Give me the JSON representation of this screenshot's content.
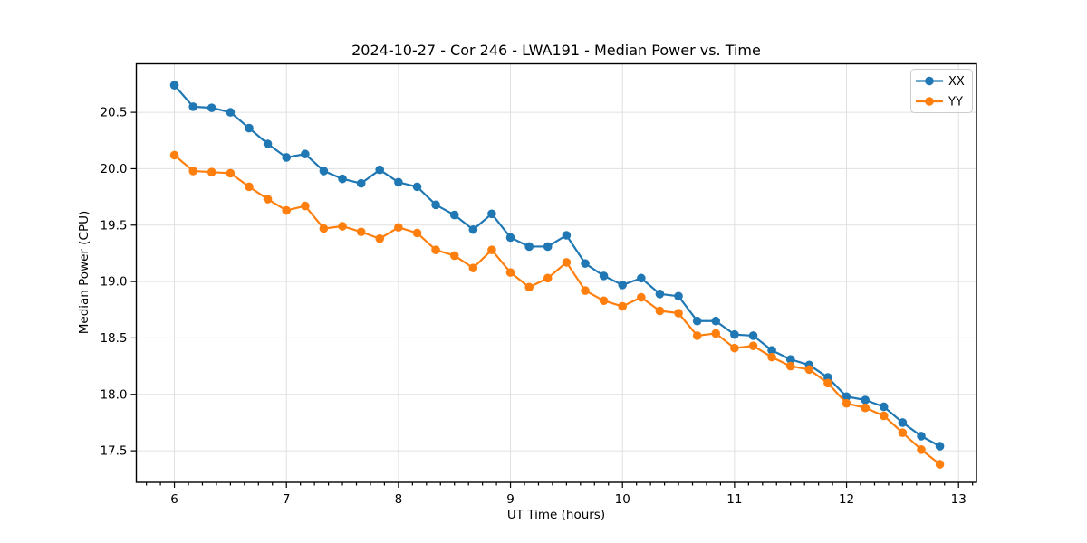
{
  "chart_data": {
    "type": "line",
    "title": "2024-10-27 - Cor 246 - LWA191 - Median Power vs. Time",
    "xlabel": "UT Time (hours)",
    "ylabel": "Median Power (CPU)",
    "xlim": [
      5.66,
      13.16
    ],
    "ylim": [
      17.22,
      20.93
    ],
    "x_ticks": [
      6,
      7,
      8,
      9,
      10,
      11,
      12,
      13
    ],
    "x_minor_step": 0.125,
    "y_ticks": [
      17.5,
      18.0,
      18.5,
      19.0,
      19.5,
      20.0,
      20.5
    ],
    "grid": true,
    "legend_position": "upper right",
    "background": "#ffffff",
    "grid_color": "#e0e0e0",
    "x": [
      6.0,
      6.167,
      6.333,
      6.5,
      6.667,
      6.833,
      7.0,
      7.167,
      7.333,
      7.5,
      7.667,
      7.833,
      8.0,
      8.167,
      8.333,
      8.5,
      8.667,
      8.833,
      9.0,
      9.167,
      9.333,
      9.5,
      9.667,
      9.833,
      10.0,
      10.167,
      10.333,
      10.5,
      10.667,
      10.833,
      11.0,
      11.167,
      11.333,
      11.5,
      11.667,
      11.833,
      12.0,
      12.167,
      12.333,
      12.5,
      12.667,
      12.833
    ],
    "series": [
      {
        "name": "XX",
        "color": "#1f77b4",
        "marker": "circle",
        "values": [
          20.74,
          20.55,
          20.54,
          20.5,
          20.36,
          20.22,
          20.1,
          20.13,
          19.98,
          19.91,
          19.87,
          19.99,
          19.88,
          19.84,
          19.68,
          19.59,
          19.46,
          19.6,
          19.39,
          19.31,
          19.31,
          19.41,
          19.16,
          19.05,
          18.97,
          19.03,
          18.89,
          18.87,
          18.65,
          18.65,
          18.53,
          18.52,
          18.39,
          18.31,
          18.26,
          18.15,
          17.98,
          17.95,
          17.89,
          17.75,
          17.63,
          17.54
        ]
      },
      {
        "name": "YY",
        "color": "#ff7f0e",
        "marker": "circle",
        "values": [
          20.12,
          19.98,
          19.97,
          19.96,
          19.84,
          19.73,
          19.63,
          19.67,
          19.47,
          19.49,
          19.44,
          19.38,
          19.48,
          19.43,
          19.28,
          19.23,
          19.12,
          19.28,
          19.08,
          18.95,
          19.03,
          19.17,
          18.92,
          18.83,
          18.78,
          18.86,
          18.74,
          18.72,
          18.52,
          18.54,
          18.41,
          18.43,
          18.33,
          18.25,
          18.22,
          18.1,
          17.92,
          17.88,
          17.81,
          17.66,
          17.51,
          17.38
        ]
      }
    ]
  }
}
